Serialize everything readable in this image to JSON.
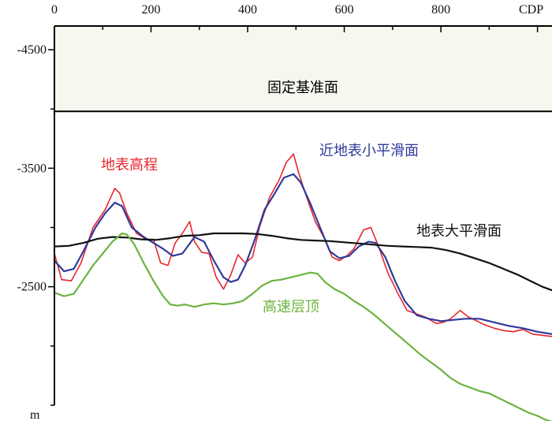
{
  "chart_data": {
    "type": "line",
    "title": "",
    "xlabel": "CDP",
    "ylabel": "m",
    "xlim": [
      0,
      1030
    ],
    "ylim": [
      1500,
      4700
    ],
    "y_inverted_labels": true,
    "x_ticks": [
      0,
      200,
      400,
      600,
      800
    ],
    "x_tick_labels": [
      "0",
      "200",
      "400",
      "600",
      "800"
    ],
    "y_ticks": [
      4500,
      3500,
      2500
    ],
    "y_tick_labels": [
      "-4500",
      "-3500",
      "-2500"
    ],
    "background_upper": "#f6f7ef",
    "reference_line": {
      "label": "固定基准面",
      "y": 3980,
      "color": "#000000"
    },
    "series": [
      {
        "name": "地表高程",
        "color": "#e8262b",
        "x": [
          0,
          15,
          35,
          55,
          80,
          105,
          125,
          135,
          150,
          170,
          190,
          205,
          220,
          235,
          250,
          265,
          280,
          290,
          305,
          320,
          335,
          350,
          365,
          380,
          395,
          410,
          425,
          445,
          465,
          480,
          495,
          505,
          520,
          540,
          560,
          575,
          590,
          605,
          620,
          640,
          655,
          670,
          690,
          710,
          730,
          750,
          770,
          790,
          805,
          820,
          840,
          855,
          870,
          890,
          910,
          930,
          950,
          970,
          990,
          1010,
          1030
        ],
        "values": [
          2780,
          2560,
          2550,
          2700,
          3000,
          3150,
          3330,
          3290,
          3120,
          2950,
          2900,
          2900,
          2700,
          2680,
          2870,
          2950,
          3050,
          2880,
          2790,
          2780,
          2580,
          2480,
          2600,
          2770,
          2700,
          2750,
          3010,
          3250,
          3400,
          3550,
          3620,
          3470,
          3280,
          3050,
          2900,
          2750,
          2720,
          2760,
          2820,
          2980,
          3000,
          2850,
          2620,
          2450,
          2300,
          2270,
          2240,
          2190,
          2200,
          2230,
          2300,
          2250,
          2220,
          2180,
          2150,
          2130,
          2120,
          2140,
          2100,
          2090,
          2080
        ]
      },
      {
        "name": "近地表小平滑面",
        "color": "#2f3a9a",
        "x": [
          0,
          20,
          40,
          60,
          85,
          105,
          125,
          140,
          160,
          185,
          205,
          225,
          245,
          265,
          290,
          310,
          330,
          350,
          365,
          380,
          395,
          415,
          435,
          455,
          475,
          495,
          510,
          530,
          550,
          570,
          590,
          610,
          630,
          650,
          665,
          685,
          705,
          725,
          750,
          775,
          800,
          825,
          850,
          880,
          910,
          940,
          970,
          1000,
          1030
        ],
        "values": [
          2720,
          2630,
          2650,
          2800,
          3000,
          3120,
          3210,
          3180,
          3000,
          2920,
          2870,
          2820,
          2760,
          2780,
          2920,
          2880,
          2720,
          2580,
          2540,
          2560,
          2680,
          2900,
          3150,
          3280,
          3420,
          3450,
          3380,
          3200,
          3000,
          2800,
          2740,
          2760,
          2840,
          2880,
          2870,
          2750,
          2550,
          2380,
          2260,
          2230,
          2210,
          2220,
          2230,
          2230,
          2200,
          2170,
          2150,
          2120,
          2100
        ]
      },
      {
        "name": "地表大平滑面",
        "color": "#111111",
        "x": [
          0,
          30,
          60,
          90,
          120,
          150,
          180,
          210,
          240,
          270,
          300,
          330,
          360,
          390,
          420,
          450,
          480,
          510,
          540,
          570,
          600,
          630,
          660,
          690,
          720,
          750,
          780,
          810,
          840,
          870,
          900,
          930,
          960,
          990,
          1010,
          1030
        ],
        "values": [
          2840,
          2845,
          2870,
          2905,
          2920,
          2915,
          2900,
          2895,
          2910,
          2930,
          2935,
          2950,
          2950,
          2950,
          2945,
          2930,
          2910,
          2895,
          2890,
          2885,
          2875,
          2865,
          2855,
          2845,
          2840,
          2835,
          2830,
          2810,
          2780,
          2740,
          2700,
          2650,
          2600,
          2540,
          2500,
          2470
        ]
      },
      {
        "name": "高速层顶",
        "color": "#6cb33e",
        "x": [
          0,
          20,
          40,
          60,
          80,
          100,
          120,
          140,
          150,
          165,
          185,
          205,
          225,
          240,
          255,
          270,
          290,
          310,
          330,
          350,
          370,
          390,
          410,
          430,
          450,
          470,
          490,
          510,
          530,
          545,
          560,
          580,
          600,
          620,
          640,
          660,
          680,
          700,
          720,
          740,
          760,
          780,
          800,
          820,
          840,
          860,
          880,
          900,
          920,
          940,
          960,
          980,
          1000,
          1015,
          1030
        ],
        "values": [
          2450,
          2420,
          2440,
          2560,
          2680,
          2780,
          2880,
          2950,
          2940,
          2860,
          2700,
          2550,
          2420,
          2350,
          2340,
          2350,
          2330,
          2350,
          2360,
          2350,
          2360,
          2380,
          2440,
          2510,
          2550,
          2560,
          2580,
          2600,
          2620,
          2610,
          2540,
          2480,
          2440,
          2380,
          2330,
          2270,
          2200,
          2130,
          2060,
          1990,
          1920,
          1860,
          1800,
          1730,
          1680,
          1650,
          1620,
          1600,
          1560,
          1520,
          1480,
          1440,
          1410,
          1380,
          1360
        ]
      }
    ]
  }
}
